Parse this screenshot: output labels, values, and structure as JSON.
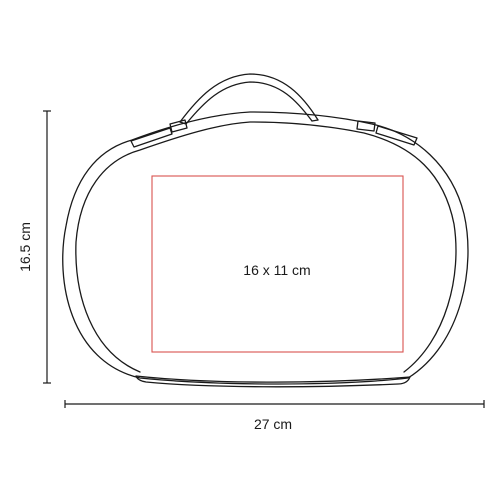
{
  "product": {
    "height_label": "16.5 cm",
    "width_label": "27 cm",
    "print_area_label": "16 x 11 cm"
  },
  "colors": {
    "outline": "#1a1a1a",
    "print_area": "#d9534f",
    "background": "#ffffff"
  }
}
